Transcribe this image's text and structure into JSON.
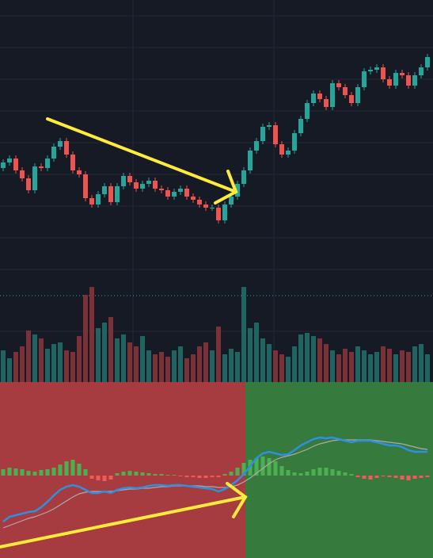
{
  "chart_data": [
    {
      "type": "candlestick",
      "up_color": "#26a69a",
      "down_color": "#ef5350",
      "ylim": [
        0,
        340
      ],
      "open": [
        128,
        135,
        140,
        125,
        115,
        100,
        130,
        128,
        140,
        155,
        162,
        145,
        125,
        120,
        90,
        82,
        95,
        105,
        85,
        105,
        118,
        110,
        102,
        108,
        112,
        102,
        100,
        92,
        98,
        102,
        92,
        88,
        82,
        78,
        78,
        62,
        82,
        92,
        108,
        125,
        150,
        162,
        180,
        182,
        158,
        145,
        150,
        172,
        190,
        210,
        222,
        215,
        205,
        235,
        230,
        220,
        210,
        230,
        250,
        252,
        255,
        240,
        232,
        248,
        245,
        232,
        245,
        255
      ],
      "close": [
        135,
        140,
        125,
        115,
        100,
        130,
        128,
        140,
        155,
        162,
        145,
        125,
        120,
        90,
        82,
        95,
        105,
        85,
        105,
        118,
        110,
        102,
        108,
        112,
        102,
        100,
        92,
        98,
        102,
        92,
        88,
        82,
        78,
        78,
        62,
        82,
        92,
        108,
        125,
        150,
        162,
        180,
        182,
        158,
        145,
        150,
        172,
        190,
        210,
        222,
        215,
        205,
        235,
        230,
        220,
        210,
        230,
        250,
        252,
        255,
        240,
        232,
        248,
        245,
        232,
        245,
        255,
        268
      ],
      "high": [
        139,
        144,
        144,
        129,
        119,
        134,
        134,
        144,
        159,
        166,
        166,
        149,
        129,
        124,
        94,
        99,
        109,
        109,
        109,
        122,
        122,
        114,
        112,
        116,
        116,
        106,
        104,
        102,
        106,
        106,
        96,
        92,
        86,
        82,
        82,
        86,
        96,
        112,
        129,
        154,
        166,
        184,
        186,
        186,
        162,
        154,
        176,
        194,
        214,
        226,
        226,
        219,
        239,
        239,
        234,
        224,
        234,
        254,
        256,
        259,
        259,
        244,
        252,
        252,
        249,
        249,
        259,
        272
      ],
      "low": [
        124,
        131,
        121,
        111,
        96,
        96,
        124,
        124,
        136,
        151,
        141,
        121,
        116,
        86,
        78,
        78,
        91,
        81,
        81,
        101,
        106,
        98,
        98,
        104,
        98,
        96,
        88,
        88,
        94,
        88,
        84,
        78,
        74,
        74,
        58,
        58,
        78,
        88,
        104,
        121,
        146,
        158,
        176,
        154,
        141,
        141,
        146,
        168,
        186,
        206,
        211,
        201,
        201,
        226,
        216,
        206,
        206,
        226,
        246,
        248,
        236,
        228,
        228,
        241,
        228,
        228,
        241,
        251
      ]
    },
    {
      "type": "bar",
      "up_color": "#1f6663",
      "down_color": "#7c3038",
      "ylim": [
        0,
        122
      ],
      "values": [
        40,
        30,
        38,
        45,
        65,
        60,
        55,
        42,
        48,
        50,
        40,
        38,
        58,
        110,
        120,
        68,
        75,
        82,
        55,
        60,
        50,
        45,
        58,
        40,
        35,
        38,
        32,
        40,
        45,
        30,
        35,
        45,
        50,
        40,
        70,
        35,
        42,
        38,
        120,
        68,
        75,
        55,
        48,
        40,
        35,
        32,
        45,
        60,
        62,
        58,
        55,
        48,
        40,
        35,
        42,
        38,
        45,
        40,
        35,
        38,
        45,
        42,
        35,
        40,
        38,
        45,
        48,
        35
      ]
    },
    {
      "type": "macd",
      "ylim": [
        -104,
        118
      ],
      "histogram": {
        "up_color": "#4caf50",
        "down_color": "#f05a5a",
        "values": [
          8,
          10,
          9,
          8,
          6,
          5,
          7,
          8,
          10,
          14,
          18,
          20,
          15,
          8,
          -4,
          -6,
          -7,
          -5,
          3,
          5,
          6,
          5,
          4,
          3,
          2,
          2,
          1,
          1,
          -1,
          -2,
          -2,
          -3,
          -3,
          -2,
          -2,
          2,
          5,
          10,
          16,
          20,
          22,
          24,
          22,
          18,
          12,
          7,
          4,
          3,
          5,
          8,
          10,
          10,
          8,
          6,
          4,
          2,
          -2,
          -4,
          -5,
          -3,
          -1,
          -2,
          -3,
          -5,
          -6,
          -4,
          -3,
          -2
        ]
      },
      "series": [
        {
          "color": "#2f8fe0",
          "values": [
            -58,
            -52,
            -50,
            -48,
            -46,
            -45,
            -40,
            -33,
            -25,
            -18,
            -14,
            -12,
            -14,
            -18,
            -22,
            -22,
            -20,
            -22,
            -18,
            -16,
            -15,
            -16,
            -15,
            -13,
            -12,
            -12,
            -13,
            -12,
            -12,
            -13,
            -14,
            -15,
            -16,
            -17,
            -20,
            -17,
            -12,
            -6,
            2,
            12,
            22,
            28,
            30,
            28,
            26,
            27,
            32,
            38,
            42,
            46,
            48,
            47,
            48,
            46,
            44,
            42,
            44,
            44,
            44,
            42,
            40,
            38,
            38,
            36,
            32,
            30,
            30,
            30
          ]
        },
        {
          "color": "#b0a8a8",
          "values": [
            -66,
            -63,
            -60,
            -57,
            -54,
            -52,
            -49,
            -46,
            -42,
            -37,
            -32,
            -27,
            -23,
            -21,
            -20,
            -20,
            -20,
            -20,
            -19,
            -18,
            -17,
            -17,
            -16,
            -16,
            -15,
            -14,
            -14,
            -13,
            -13,
            -13,
            -13,
            -13,
            -14,
            -14,
            -15,
            -15,
            -14,
            -12,
            -8,
            -3,
            3,
            9,
            15,
            20,
            23,
            25,
            27,
            30,
            33,
            37,
            40,
            42,
            44,
            45,
            45,
            45,
            45,
            45,
            45,
            44,
            43,
            42,
            41,
            40,
            38,
            36,
            34,
            33
          ]
        }
      ]
    }
  ]
}
